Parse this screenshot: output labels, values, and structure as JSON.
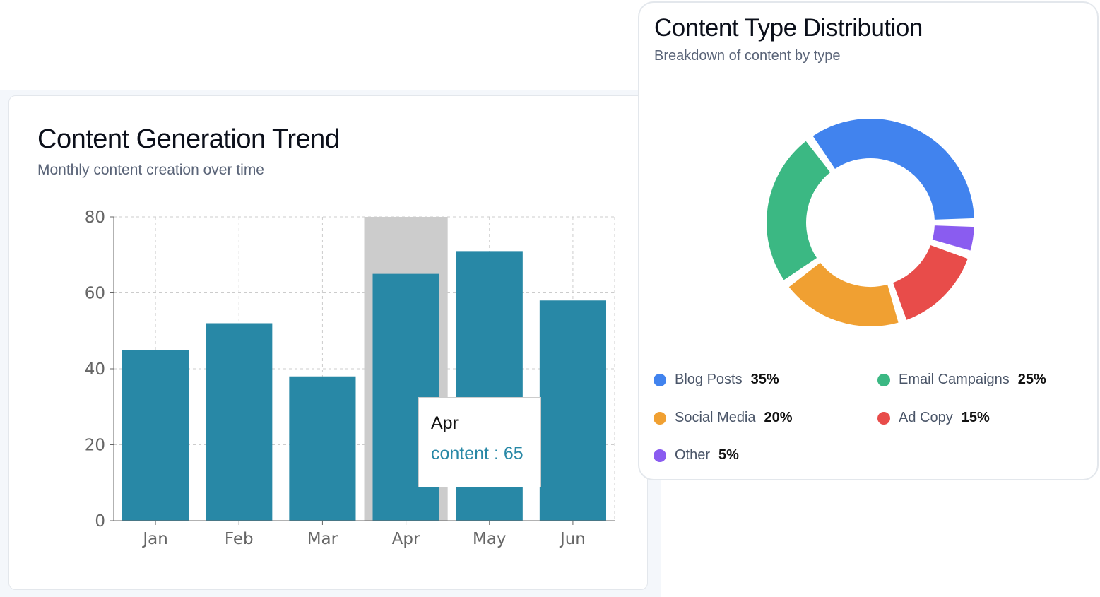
{
  "trend": {
    "title": "Content Generation Trend",
    "subtitle": "Monthly content creation over time",
    "tooltip": {
      "label": "Apr",
      "series": "content",
      "value": "65",
      "text": "content : 65"
    }
  },
  "distribution": {
    "title": "Content Type Distribution",
    "subtitle": "Breakdown of content by type"
  },
  "chart_data": [
    {
      "type": "bar",
      "title": "Content Generation Trend",
      "categories": [
        "Jan",
        "Feb",
        "Mar",
        "Apr",
        "May",
        "Jun"
      ],
      "series": [
        {
          "name": "content",
          "values": [
            45,
            52,
            38,
            65,
            71,
            58
          ]
        }
      ],
      "ylim": [
        0,
        80
      ],
      "yticks": [
        0,
        20,
        40,
        60,
        80
      ],
      "grid": true,
      "highlighted": "Apr",
      "color": "#2888a6"
    },
    {
      "type": "pie",
      "title": "Content Type Distribution",
      "donut": true,
      "labels": [
        "Blog Posts",
        "Email Campaigns",
        "Social Media",
        "Ad Copy",
        "Other"
      ],
      "values": [
        35,
        25,
        20,
        15,
        5
      ],
      "value_labels": [
        "35%",
        "25%",
        "20%",
        "15%",
        "5%"
      ],
      "colors": [
        "#4183ee",
        "#3bb883",
        "#f0a032",
        "#e84c4a",
        "#8a5cf0"
      ]
    }
  ]
}
